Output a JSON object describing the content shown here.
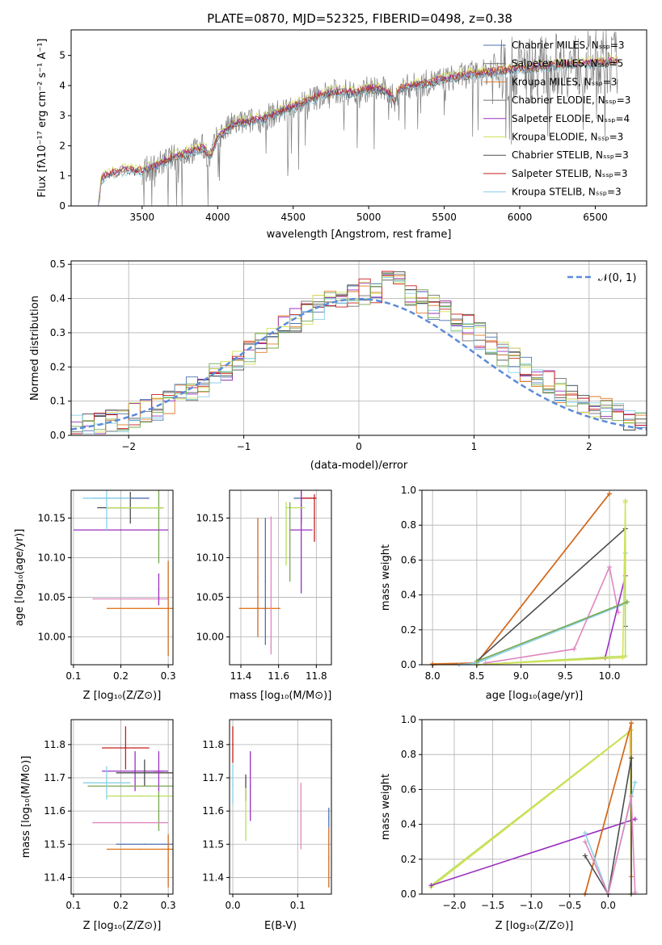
{
  "colors": {
    "blue": "#4c72b0",
    "orange": "#e07b26",
    "chocolate": "#d2691e",
    "gray": "#707070",
    "purple": "#9b30c0",
    "yellow": "#d4e157",
    "dark": "#4d4d4d",
    "red": "#c81e1e",
    "cyan": "#88d0e8",
    "lime": "#b8e05a",
    "pink": "#e087c0",
    "green": "#78a850",
    "normal": "#5b8bd8",
    "grid": "#b0b0b0"
  },
  "spectrum": {
    "title": "PLATE=0870, MJD=52325, FIBERID=0498, z=0.38",
    "xlabel": "wavelength [Angstrom, rest frame]",
    "ylabel": "Flux [fλ10⁻¹⁷ erg cm⁻² s⁻¹ A⁻¹]",
    "xticks": [
      "3500",
      "4000",
      "4500",
      "5000",
      "5500",
      "6000",
      "6500"
    ],
    "yticks": [
      "0",
      "1",
      "2",
      "3",
      "4",
      "5"
    ],
    "legend": [
      "Chabrier MILES, Nₛₛₚ=3",
      "Salpeter MILES, Nₛₛₚ=5",
      "Kroupa MILES, Nₛₛₚ=3",
      "Chabrier ELODIE, Nₛₛₚ=3",
      "Salpeter ELODIE, Nₛₛₚ=4",
      "Kroupa ELODIE, Nₛₛₚ=3",
      "Chabrier STELIB, Nₛₛₚ=3",
      "Salpeter STELIB, Nₛₛₚ=3",
      "Kroupa STELIB, Nₛₛₚ=3"
    ]
  },
  "chart_data": [
    {
      "type": "line",
      "title": "PLATE=0870, MJD=52325, FIBERID=0498, z=0.38",
      "xlabel": "wavelength [Angstrom, rest frame]",
      "ylabel": "Flux [fλ10⁻¹⁷ erg cm⁻² s⁻¹ A⁻¹]",
      "xlim": [
        3030,
        6840
      ],
      "ylim": [
        0,
        5.85
      ],
      "continuum": {
        "x": [
          3210,
          3230,
          3300,
          3400,
          3500,
          3600,
          3700,
          3800,
          3900,
          3950,
          4000,
          4050,
          4100,
          4200,
          4300,
          4400,
          4500,
          4600,
          4700,
          4800,
          4900,
          5000,
          5100,
          5150,
          5175,
          5200,
          5300,
          5400,
          5500,
          5600,
          5700,
          5800,
          5900,
          6000,
          6100,
          6200,
          6300,
          6400,
          6500,
          6600,
          6650
        ],
        "y": [
          0.0,
          0.9,
          1.1,
          1.2,
          1.15,
          1.35,
          1.6,
          1.75,
          1.95,
          1.6,
          2.3,
          2.5,
          2.7,
          2.8,
          2.9,
          3.1,
          3.3,
          3.5,
          3.7,
          3.8,
          3.75,
          3.9,
          3.85,
          3.7,
          3.4,
          3.9,
          4.0,
          4.1,
          4.2,
          4.3,
          4.4,
          4.45,
          4.5,
          4.55,
          4.6,
          4.65,
          4.7,
          4.7,
          4.75,
          4.8,
          4.8
        ]
      },
      "series": [
        {
          "name": "Chabrier MILES, Nₛₛₚ=3",
          "offset": 0.0
        },
        {
          "name": "Salpeter MILES, Nₛₛₚ=5",
          "offset": 0.03
        },
        {
          "name": "Kroupa MILES, Nₛₛₚ=3",
          "offset": -0.03
        },
        {
          "name": "Chabrier ELODIE, Nₛₛₚ=3",
          "offset": 0.0,
          "noisy": true
        },
        {
          "name": "Salpeter ELODIE, Nₛₛₚ=4",
          "offset": 0.05
        },
        {
          "name": "Kroupa ELODIE, Nₛₛₚ=3",
          "offset": 0.12
        },
        {
          "name": "Chabrier STELIB, Nₛₛₚ=3",
          "offset": -0.05
        },
        {
          "name": "Salpeter STELIB, Nₛₛₚ=3",
          "offset": 0.02
        },
        {
          "name": "Kroupa STELIB, Nₛₛₚ=3",
          "offset": -0.08
        }
      ]
    },
    {
      "type": "line",
      "xlabel": "(data-model)/error",
      "ylabel": "Normed distribution",
      "xlim": [
        -2.5,
        2.5
      ],
      "ylim": [
        0,
        0.51
      ],
      "xticks": [
        "−2",
        "−1",
        "0",
        "1",
        "2"
      ],
      "yticks": [
        "0.0",
        "0.1",
        "0.2",
        "0.3",
        "0.4",
        "0.5"
      ],
      "grid": true,
      "legend": "top-right",
      "series": [
        {
          "name": "𝒩(0, 1)",
          "kind": "gaussian",
          "mean": 0,
          "sigma": 1
        }
      ],
      "histograms": {
        "bins": 50,
        "peak": 0.44,
        "count": 9
      }
    },
    {
      "type": "scatter",
      "xlabel": "Z [log₁₀(Z/Z⊙)]",
      "ylabel": "age  [log₁₀(age/yr)]",
      "xlim": [
        0.095,
        0.31
      ],
      "ylim": [
        9.965,
        10.185
      ],
      "xticks": [
        "0.1",
        "0.2",
        "0.3"
      ],
      "yticks": [
        "10.00",
        "10.05",
        "10.10",
        "10.15"
      ],
      "points": [
        {
          "x": 0.2,
          "y": 10.175,
          "xerr": 0.06,
          "yerr": 0.0,
          "c": "blue"
        },
        {
          "x": 0.22,
          "y": 10.163,
          "xerr": 0.07,
          "yerr": 0.02,
          "c": "dark"
        },
        {
          "x": 0.28,
          "y": 10.163,
          "xerr": 0.01,
          "yerr": 0.07,
          "c": "green"
        },
        {
          "x": 0.2,
          "y": 10.135,
          "xerr": 0.1,
          "yerr": 0.0,
          "c": "purple"
        },
        {
          "x": 0.23,
          "y": 10.163,
          "xerr": 0.06,
          "yerr": 0.0,
          "c": "lime"
        },
        {
          "x": 0.17,
          "y": 10.175,
          "xerr": 0.05,
          "yerr": 0.04,
          "c": "cyan"
        },
        {
          "x": 0.22,
          "y": 10.048,
          "xerr": 0.08,
          "yerr": 0.0,
          "c": "pink"
        },
        {
          "x": 0.24,
          "y": 10.036,
          "xerr": 0.07,
          "yerr": 0.0,
          "c": "orange"
        },
        {
          "x": 0.3,
          "y": 10.036,
          "xerr": 0.0,
          "yerr": 0.06,
          "c": "chocolate"
        },
        {
          "x": 0.28,
          "y": 10.06,
          "xerr": 0.0,
          "yerr": 0.02,
          "c": "purple"
        }
      ]
    },
    {
      "type": "scatter",
      "xlabel": "mass [log₁₀(M/M⊙)]",
      "xlim": [
        11.34,
        11.88
      ],
      "ylim": [
        9.965,
        10.185
      ],
      "xticks": [
        "11.4",
        "11.6",
        "11.8"
      ],
      "yticks": [
        "10.00",
        "10.05",
        "10.10",
        "10.15"
      ],
      "points": [
        {
          "x": 11.74,
          "y": 10.175,
          "xerr": 0.06,
          "yerr": 0.0,
          "c": "blue"
        },
        {
          "x": 11.72,
          "y": 10.163,
          "xerr": 0.0,
          "yerr": 0.02,
          "c": "dark"
        },
        {
          "x": 11.76,
          "y": 10.175,
          "xerr": 0.04,
          "yerr": 0.0,
          "c": "red"
        },
        {
          "x": 11.79,
          "y": 10.15,
          "xerr": 0.0,
          "yerr": 0.03,
          "c": "red"
        },
        {
          "x": 11.72,
          "y": 10.135,
          "xerr": 0.06,
          "yerr": 0.08,
          "c": "purple"
        },
        {
          "x": 11.69,
          "y": 10.163,
          "xerr": 0.05,
          "yerr": 0.0,
          "c": "lime"
        },
        {
          "x": 11.64,
          "y": 10.13,
          "xerr": 0.0,
          "yerr": 0.04,
          "c": "lime"
        },
        {
          "x": 11.66,
          "y": 10.12,
          "xerr": 0.0,
          "yerr": 0.05,
          "c": "green"
        },
        {
          "x": 11.5,
          "y": 10.036,
          "xerr": 0.11,
          "yerr": 0.0,
          "c": "orange"
        },
        {
          "x": 11.49,
          "y": 10.075,
          "xerr": 0.0,
          "yerr": 0.075,
          "c": "chocolate"
        },
        {
          "x": 11.56,
          "y": 10.065,
          "xerr": 0.0,
          "yerr": 0.087,
          "c": "pink"
        },
        {
          "x": 11.53,
          "y": 10.07,
          "xerr": 0.0,
          "yerr": 0.08,
          "c": "blue"
        }
      ]
    },
    {
      "type": "line",
      "xlabel": "age  [log₁₀(age/yr)]",
      "ylabel": "mass weight",
      "xlim": [
        7.88,
        10.42
      ],
      "ylim": [
        0,
        1
      ],
      "xticks": [
        "8.0",
        "8.5",
        "9.0",
        "9.5",
        "10.0"
      ],
      "yticks": [
        "0.0",
        "0.2",
        "0.4",
        "0.6",
        "0.8",
        "1.0"
      ],
      "grid": true,
      "series": [
        {
          "c": "orange",
          "x": [
            8.0,
            8.5,
            10.0
          ],
          "y": [
            0.005,
            0.01,
            0.98
          ]
        },
        {
          "c": "chocolate",
          "x": [
            8.0,
            8.5,
            10.0
          ],
          "y": [
            0.0,
            0.01,
            0.98
          ]
        },
        {
          "c": "dark",
          "x": [
            8.5,
            10.18,
            10.18
          ],
          "y": [
            0.02,
            0.78,
            0.22
          ]
        },
        {
          "c": "cyan",
          "x": [
            8.3,
            8.5,
            10.18,
            10.18
          ],
          "y": [
            0.0,
            0.01,
            0.35,
            0.64
          ]
        },
        {
          "c": "pink",
          "x": [
            8.6,
            9.6,
            10.0,
            10.1
          ],
          "y": [
            0.01,
            0.09,
            0.56,
            0.3
          ]
        },
        {
          "c": "purple",
          "x": [
            8.5,
            9.95,
            10.18
          ],
          "y": [
            0.0,
            0.04,
            0.51
          ]
        },
        {
          "c": "lime",
          "x": [
            8.5,
            10.18,
            10.18
          ],
          "y": [
            0.0,
            0.05,
            0.94
          ]
        },
        {
          "c": "yellow",
          "x": [
            8.5,
            10.15,
            10.18
          ],
          "y": [
            0.0,
            0.04,
            0.93
          ]
        },
        {
          "c": "green",
          "x": [
            8.5,
            10.2
          ],
          "y": [
            0.02,
            0.36
          ]
        }
      ]
    },
    {
      "type": "scatter",
      "xlabel": "Z [log₁₀(Z/Z⊙)]",
      "ylabel": "mass [log₁₀(M/M⊙)]",
      "xlim": [
        0.095,
        0.31
      ],
      "ylim": [
        11.35,
        11.875
      ],
      "xticks": [
        "0.1",
        "0.2",
        "0.3"
      ],
      "yticks": [
        "11.4",
        "11.5",
        "11.6",
        "11.7",
        "11.8"
      ],
      "points": [
        {
          "x": 0.21,
          "y": 11.79,
          "xerr": 0.05,
          "yerr": 0.065,
          "c": "red"
        },
        {
          "x": 0.23,
          "y": 11.72,
          "xerr": 0.07,
          "yerr": 0.06,
          "c": "purple"
        },
        {
          "x": 0.25,
          "y": 11.715,
          "xerr": 0.06,
          "yerr": 0.04,
          "c": "dark"
        },
        {
          "x": 0.28,
          "y": 11.72,
          "xerr": 0.01,
          "yerr": 0.06,
          "c": "purple"
        },
        {
          "x": 0.22,
          "y": 11.675,
          "xerr": 0.09,
          "yerr": 0.0,
          "c": "green"
        },
        {
          "x": 0.17,
          "y": 11.685,
          "xerr": 0.05,
          "yerr": 0.05,
          "c": "cyan"
        },
        {
          "x": 0.24,
          "y": 11.645,
          "xerr": 0.07,
          "yerr": 0.0,
          "c": "lime"
        },
        {
          "x": 0.28,
          "y": 11.6,
          "xerr": 0.0,
          "yerr": 0.06,
          "c": "green"
        },
        {
          "x": 0.22,
          "y": 11.565,
          "xerr": 0.08,
          "yerr": 0.0,
          "c": "pink"
        },
        {
          "x": 0.25,
          "y": 11.5,
          "xerr": 0.06,
          "yerr": 0.0,
          "c": "blue"
        },
        {
          "x": 0.24,
          "y": 11.485,
          "xerr": 0.07,
          "yerr": 0.0,
          "c": "orange"
        },
        {
          "x": 0.3,
          "y": 11.45,
          "xerr": 0.0,
          "yerr": 0.08,
          "c": "chocolate"
        }
      ]
    },
    {
      "type": "scatter",
      "xlabel": "E(B-V)",
      "xlim": [
        -0.005,
        0.152
      ],
      "ylim": [
        11.35,
        11.875
      ],
      "xticks": [
        "0.0",
        "0.1"
      ],
      "yticks": [
        "11.4",
        "11.5",
        "11.6",
        "11.7",
        "11.8"
      ],
      "points": [
        {
          "x": 0.0,
          "y": 11.8,
          "xerr": 0.0,
          "yerr": 0.055,
          "c": "red"
        },
        {
          "x": 0.0,
          "y": 11.68,
          "xerr": 0.0,
          "yerr": 0.06,
          "c": "cyan"
        },
        {
          "x": 0.02,
          "y": 11.67,
          "xerr": 0.0,
          "yerr": 0.04,
          "c": "dark"
        },
        {
          "x": 0.02,
          "y": 11.59,
          "xerr": 0.0,
          "yerr": 0.08,
          "c": "lime"
        },
        {
          "x": 0.027,
          "y": 11.675,
          "xerr": 0.0,
          "yerr": 0.105,
          "c": "purple"
        },
        {
          "x": 0.105,
          "y": 11.585,
          "xerr": 0.0,
          "yerr": 0.1,
          "c": "pink"
        },
        {
          "x": 0.148,
          "y": 11.58,
          "xerr": 0.0,
          "yerr": 0.03,
          "c": "blue"
        },
        {
          "x": 0.148,
          "y": 11.46,
          "xerr": 0.0,
          "yerr": 0.09,
          "c": "chocolate"
        }
      ]
    },
    {
      "type": "line",
      "xlabel": "Z [log₁₀(Z/Z⊙)]",
      "ylabel": "mass weight",
      "xlim": [
        -2.42,
        0.5
      ],
      "ylim": [
        0,
        1
      ],
      "xticks": [
        "−2.0",
        "−1.5",
        "−1.0",
        "−0.5",
        "0.0"
      ],
      "yticks": [
        "0.0",
        "0.2",
        "0.4",
        "0.6",
        "0.8",
        "1.0"
      ],
      "grid": true,
      "series": [
        {
          "c": "lime",
          "x": [
            -2.3,
            0.3,
            0.3
          ],
          "y": [
            0.05,
            0.94,
            0.0
          ]
        },
        {
          "c": "yellow",
          "x": [
            -2.3,
            0.28,
            0.3
          ],
          "y": [
            0.04,
            0.93,
            0.0
          ]
        },
        {
          "c": "purple",
          "x": [
            -2.3,
            0.35
          ],
          "y": [
            0.05,
            0.43
          ]
        },
        {
          "c": "orange",
          "x": [
            -0.3,
            0.3,
            0.3
          ],
          "y": [
            0.0,
            0.98,
            0.1
          ]
        },
        {
          "c": "chocolate",
          "x": [
            -0.3,
            0.3
          ],
          "y": [
            0.0,
            0.98
          ]
        },
        {
          "c": "dark",
          "x": [
            -0.3,
            0.0,
            0.3,
            0.3
          ],
          "y": [
            0.22,
            0.0,
            0.78,
            0.0
          ]
        },
        {
          "c": "cyan",
          "x": [
            -0.3,
            0.0,
            0.35
          ],
          "y": [
            0.35,
            0.0,
            0.64
          ]
        },
        {
          "c": "pink",
          "x": [
            -0.3,
            0.0,
            0.3,
            0.35
          ],
          "y": [
            0.3,
            0.0,
            0.56,
            0.01
          ]
        }
      ]
    }
  ]
}
